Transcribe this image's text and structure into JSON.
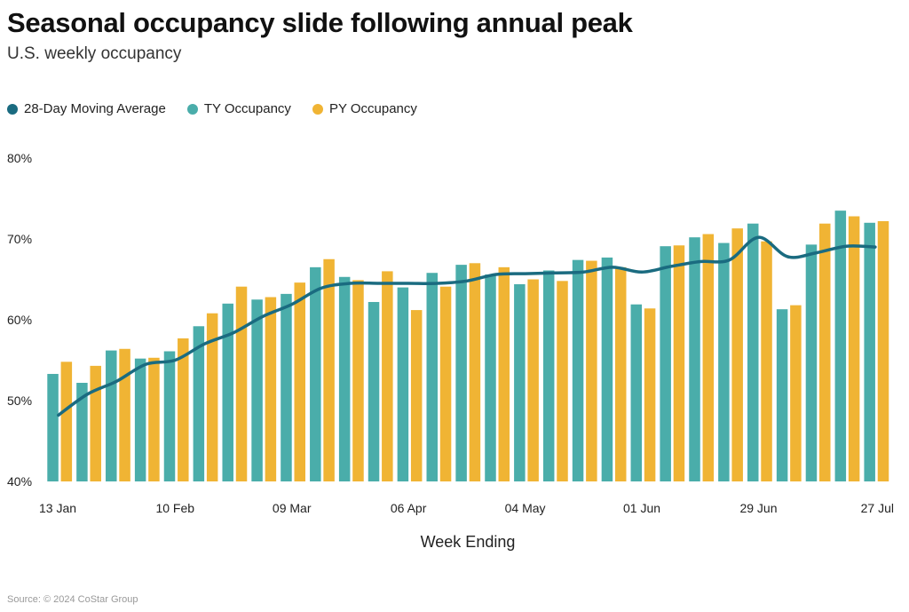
{
  "header": {
    "title": "Seasonal occupancy slide following annual peak",
    "subtitle": "U.S. weekly occupancy"
  },
  "legend": [
    {
      "label": "28-Day Moving Average",
      "color": "#1a6b80"
    },
    {
      "label": "TY Occupancy",
      "color": "#4aadaa"
    },
    {
      "label": "PY Occupancy",
      "color": "#f0b434"
    }
  ],
  "footer": {
    "source": "Source: © 2024 CoStar Group"
  },
  "chart_data": {
    "type": "bar",
    "title": "Seasonal occupancy slide following annual peak",
    "subtitle": "U.S. weekly occupancy",
    "xlabel": "Week Ending",
    "ylabel": "",
    "ylim": [
      40,
      80
    ],
    "yticks": [
      40,
      50,
      60,
      70,
      80
    ],
    "ytick_labels": [
      "40%",
      "50%",
      "60%",
      "70%",
      "80%"
    ],
    "xtick_labels": [
      {
        "index": 0,
        "label": "13 Jan"
      },
      {
        "index": 4,
        "label": "10 Feb"
      },
      {
        "index": 8,
        "label": "09 Mar"
      },
      {
        "index": 12,
        "label": "06 Apr"
      },
      {
        "index": 16,
        "label": "04 May"
      },
      {
        "index": 20,
        "label": "01 Jun"
      },
      {
        "index": 24,
        "label": "29 Jun"
      },
      {
        "index": 28,
        "label": "27 Jul"
      }
    ],
    "num_weeks": 29,
    "series": [
      {
        "name": "TY Occupancy",
        "kind": "bar",
        "color": "#4aadaa",
        "values": [
          53.3,
          52.2,
          56.2,
          55.2,
          56.1,
          59.2,
          62.0,
          62.5,
          63.2,
          66.5,
          65.3,
          62.2,
          64.0,
          65.8,
          66.8,
          65.6,
          64.4,
          66.1,
          67.4,
          67.7,
          61.9,
          69.1,
          70.2,
          69.5,
          71.9,
          61.3,
          69.3,
          73.5,
          72.0
        ]
      },
      {
        "name": "PY Occupancy",
        "kind": "bar",
        "color": "#f0b434",
        "values": [
          54.8,
          54.3,
          56.4,
          55.3,
          57.7,
          60.8,
          64.1,
          62.8,
          64.6,
          67.5,
          64.9,
          66.0,
          61.2,
          64.1,
          67.0,
          66.5,
          65.0,
          64.8,
          67.3,
          66.5,
          61.4,
          69.2,
          70.6,
          71.3,
          69.7,
          61.8,
          71.9,
          72.8,
          72.2
        ]
      },
      {
        "name": "28-Day Moving Average",
        "kind": "line",
        "color": "#1a6b80",
        "values": [
          48.2,
          50.8,
          52.4,
          54.5,
          55.0,
          57.0,
          58.4,
          60.4,
          61.9,
          63.9,
          64.5,
          64.5,
          64.5,
          64.5,
          64.8,
          65.6,
          65.7,
          65.8,
          65.9,
          66.5,
          65.9,
          66.6,
          67.2,
          67.4,
          70.2,
          67.8,
          68.3,
          69.1,
          69.0
        ]
      }
    ]
  }
}
